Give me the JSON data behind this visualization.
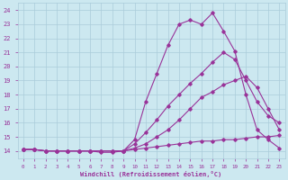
{
  "xlabel": "Windchill (Refroidissement éolien,°C)",
  "bg_color": "#cce8f0",
  "grid_color": "#aaccda",
  "line_color": "#993399",
  "xlim": [
    -0.5,
    23.5
  ],
  "ylim": [
    13.5,
    24.5
  ],
  "xticks": [
    0,
    1,
    2,
    3,
    4,
    5,
    6,
    7,
    8,
    9,
    10,
    11,
    12,
    13,
    14,
    15,
    16,
    17,
    18,
    19,
    20,
    21,
    22,
    23
  ],
  "yticks": [
    14,
    15,
    16,
    17,
    18,
    19,
    20,
    21,
    22,
    23,
    24
  ],
  "lines": [
    {
      "x": [
        0,
        1,
        2,
        3,
        4,
        5,
        6,
        7,
        8,
        9,
        10,
        11,
        12,
        13,
        14,
        15,
        16,
        17,
        18,
        19,
        20,
        21,
        22,
        23
      ],
      "y": [
        14.1,
        14.1,
        14.0,
        14.0,
        14.0,
        14.0,
        14.0,
        14.0,
        14.0,
        14.0,
        14.1,
        14.2,
        14.3,
        14.4,
        14.5,
        14.6,
        14.7,
        14.7,
        14.8,
        14.8,
        14.9,
        15.0,
        15.0,
        15.1
      ]
    },
    {
      "x": [
        0,
        1,
        2,
        3,
        4,
        5,
        6,
        7,
        8,
        9,
        10,
        11,
        12,
        13,
        14,
        15,
        16,
        17,
        18,
        19,
        20,
        21,
        22,
        23
      ],
      "y": [
        14.1,
        14.1,
        14.0,
        14.0,
        14.0,
        14.0,
        14.0,
        14.0,
        14.0,
        14.0,
        14.2,
        14.5,
        15.0,
        15.5,
        16.2,
        17.0,
        17.8,
        18.2,
        18.7,
        19.0,
        19.3,
        18.5,
        17.0,
        15.5
      ]
    },
    {
      "x": [
        0,
        1,
        2,
        3,
        4,
        5,
        6,
        7,
        8,
        9,
        10,
        11,
        12,
        13,
        14,
        15,
        16,
        17,
        18,
        19,
        20,
        21,
        22,
        23
      ],
      "y": [
        14.1,
        14.1,
        14.0,
        14.0,
        14.0,
        14.0,
        14.0,
        14.0,
        14.0,
        14.0,
        14.5,
        15.3,
        16.2,
        17.2,
        18.0,
        18.8,
        19.5,
        20.3,
        21.0,
        20.5,
        19.0,
        17.5,
        16.5,
        16.0
      ]
    },
    {
      "x": [
        0,
        1,
        2,
        3,
        4,
        5,
        6,
        7,
        8,
        9,
        10,
        11,
        12,
        13,
        14,
        15,
        16,
        17,
        18,
        19,
        20,
        21,
        22,
        23
      ],
      "y": [
        14.1,
        14.1,
        14.0,
        14.0,
        14.0,
        14.0,
        14.0,
        13.9,
        13.9,
        14.0,
        14.8,
        17.5,
        19.5,
        21.5,
        23.0,
        23.3,
        23.0,
        23.8,
        22.5,
        21.1,
        18.0,
        15.5,
        14.8,
        14.2
      ]
    }
  ]
}
